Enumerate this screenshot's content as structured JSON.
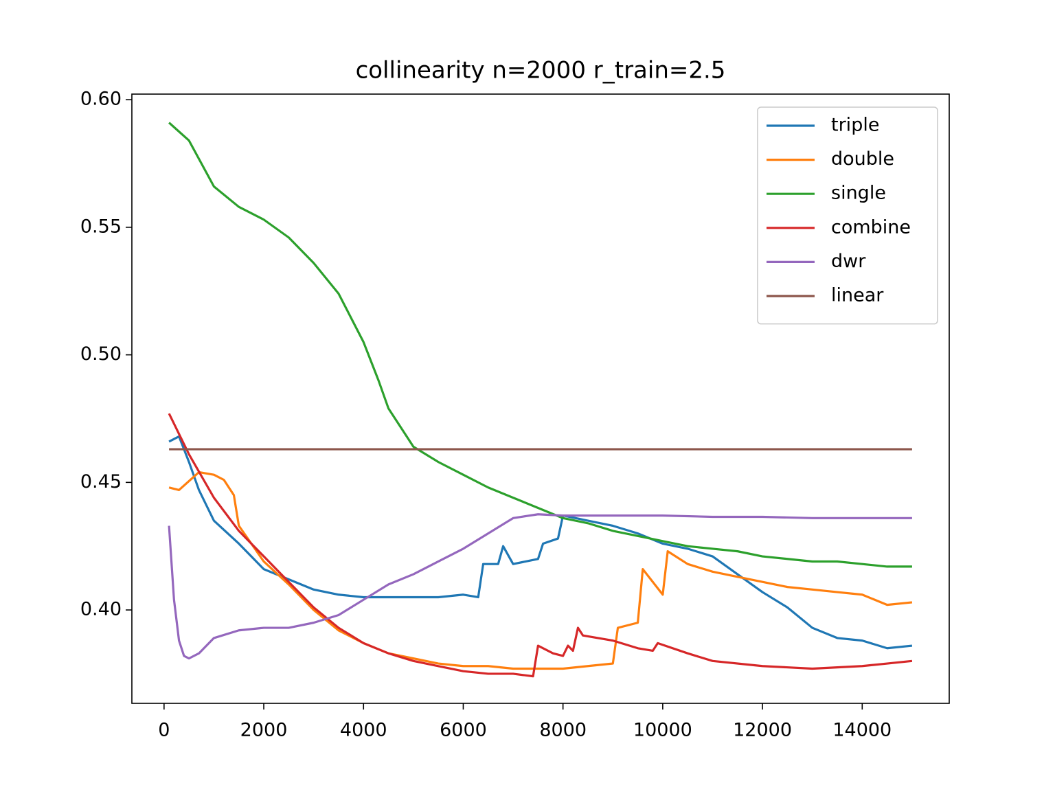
{
  "chart_data": {
    "type": "line",
    "title": "collinearity n=2000 r_train=2.5",
    "xlim": [
      -645,
      15745
    ],
    "ylim": [
      0.3634,
      0.6022
    ],
    "xticks": [
      0,
      2000,
      4000,
      6000,
      8000,
      10000,
      12000,
      14000
    ],
    "yticks": [
      {
        "value": 0.4,
        "label": "0.40"
      },
      0.45,
      {
        "value": 0.5,
        "label": "0.50"
      },
      0.55,
      {
        "value": 0.6,
        "label": "0.60"
      }
    ],
    "legend": "upper right",
    "series": [
      {
        "name": "triple",
        "color": "#1f77b4",
        "x": [
          100,
          300,
          500,
          700,
          1000,
          1500,
          2000,
          2500,
          3000,
          3500,
          4000,
          4500,
          5000,
          5500,
          6000,
          6300,
          6400,
          6700,
          6800,
          7000,
          7500,
          7600,
          7900,
          8000,
          8500,
          9000,
          9500,
          10000,
          10500,
          11000,
          11500,
          12000,
          12500,
          13000,
          13500,
          14000,
          14500,
          15000
        ],
        "values": [
          0.466,
          0.468,
          0.458,
          0.447,
          0.435,
          0.426,
          0.416,
          0.412,
          0.408,
          0.406,
          0.405,
          0.405,
          0.405,
          0.405,
          0.406,
          0.405,
          0.418,
          0.418,
          0.425,
          0.418,
          0.42,
          0.426,
          0.428,
          0.437,
          0.435,
          0.433,
          0.43,
          0.426,
          0.424,
          0.421,
          0.414,
          0.407,
          0.401,
          0.393,
          0.389,
          0.388,
          0.385,
          0.386
        ]
      },
      {
        "name": "double",
        "color": "#ff7f0e",
        "x": [
          100,
          300,
          700,
          1000,
          1200,
          1400,
          1500,
          2000,
          2500,
          3000,
          3500,
          4000,
          4500,
          5000,
          5500,
          6000,
          6500,
          7000,
          7500,
          8000,
          8500,
          9000,
          9100,
          9500,
          9600,
          10000,
          10100,
          10500,
          11000,
          11500,
          12000,
          12500,
          13000,
          13500,
          14000,
          14500,
          15000
        ],
        "values": [
          0.448,
          0.447,
          0.454,
          0.453,
          0.451,
          0.445,
          0.433,
          0.419,
          0.41,
          0.4,
          0.392,
          0.387,
          0.383,
          0.381,
          0.379,
          0.378,
          0.378,
          0.377,
          0.377,
          0.377,
          0.378,
          0.379,
          0.393,
          0.395,
          0.416,
          0.406,
          0.423,
          0.418,
          0.415,
          0.413,
          0.411,
          0.409,
          0.408,
          0.407,
          0.406,
          0.402,
          0.403
        ]
      },
      {
        "name": "single",
        "color": "#2ca02c",
        "x": [
          100,
          500,
          1000,
          1500,
          2000,
          2500,
          3000,
          3500,
          4000,
          4300,
          4500,
          5000,
          5500,
          6000,
          6500,
          7000,
          7500,
          8000,
          8500,
          9000,
          9500,
          10000,
          10500,
          11000,
          11500,
          12000,
          12500,
          13000,
          13500,
          14000,
          14500,
          15000
        ],
        "values": [
          0.591,
          0.584,
          0.566,
          0.558,
          0.553,
          0.546,
          0.536,
          0.524,
          0.505,
          0.49,
          0.479,
          0.464,
          0.458,
          0.453,
          0.448,
          0.444,
          0.44,
          0.436,
          0.434,
          0.431,
          0.429,
          0.427,
          0.425,
          0.424,
          0.423,
          0.421,
          0.42,
          0.419,
          0.419,
          0.418,
          0.417,
          0.417
        ]
      },
      {
        "name": "combine",
        "color": "#d62728",
        "x": [
          100,
          500,
          1000,
          1500,
          2000,
          2500,
          3000,
          3500,
          4000,
          4500,
          5000,
          5500,
          6000,
          6500,
          7000,
          7400,
          7500,
          7800,
          8000,
          8100,
          8200,
          8300,
          8400,
          9000,
          9500,
          9800,
          9900,
          10500,
          11000,
          12000,
          13000,
          14000,
          14500,
          15000
        ],
        "values": [
          0.477,
          0.461,
          0.444,
          0.431,
          0.421,
          0.411,
          0.401,
          0.393,
          0.387,
          0.383,
          0.38,
          0.378,
          0.376,
          0.375,
          0.375,
          0.374,
          0.386,
          0.383,
          0.382,
          0.386,
          0.384,
          0.393,
          0.39,
          0.388,
          0.385,
          0.384,
          0.387,
          0.383,
          0.38,
          0.378,
          0.377,
          0.378,
          0.379,
          0.38
        ]
      },
      {
        "name": "dwr",
        "color": "#9467bd",
        "x": [
          100,
          200,
          300,
          400,
          500,
          700,
          1000,
          1500,
          2000,
          2500,
          3000,
          3500,
          4000,
          4500,
          5000,
          5500,
          6000,
          6500,
          7000,
          7500,
          8000,
          9000,
          10000,
          11000,
          12000,
          13000,
          14000,
          15000
        ],
        "values": [
          0.433,
          0.404,
          0.388,
          0.382,
          0.381,
          0.383,
          0.389,
          0.392,
          0.393,
          0.393,
          0.395,
          0.398,
          0.404,
          0.41,
          0.414,
          0.419,
          0.424,
          0.43,
          0.436,
          0.4375,
          0.437,
          0.437,
          0.437,
          0.4365,
          0.4365,
          0.436,
          0.436,
          0.436
        ]
      },
      {
        "name": "linear",
        "color": "#8c564b",
        "x": [
          100,
          15000
        ],
        "values": [
          0.463,
          0.463
        ]
      }
    ]
  }
}
